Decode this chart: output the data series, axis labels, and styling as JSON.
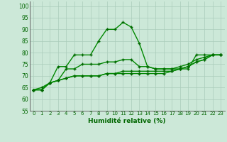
{
  "title": "",
  "xlabel": "Humidité relative (%)",
  "ylabel": "",
  "bg_color": "#cce8d8",
  "grid_color": "#aaccba",
  "line_color": "#008800",
  "marker_color": "#006600",
  "xlim": [
    -0.5,
    23.5
  ],
  "ylim": [
    55,
    102
  ],
  "yticks": [
    55,
    60,
    65,
    70,
    75,
    80,
    85,
    90,
    95,
    100
  ],
  "xticks": [
    0,
    1,
    2,
    3,
    4,
    5,
    6,
    7,
    8,
    9,
    10,
    11,
    12,
    13,
    14,
    15,
    16,
    17,
    18,
    19,
    20,
    21,
    22,
    23
  ],
  "lines": [
    [
      64,
      65,
      67,
      74,
      74,
      79,
      79,
      79,
      85,
      90,
      90,
      93,
      91,
      84,
      74,
      73,
      73,
      73,
      73,
      73,
      79,
      79,
      79,
      79
    ],
    [
      64,
      64,
      67,
      68,
      73,
      73,
      75,
      75,
      75,
      76,
      76,
      77,
      77,
      74,
      74,
      73,
      73,
      73,
      74,
      75,
      77,
      78,
      79,
      79
    ],
    [
      64,
      64,
      67,
      68,
      69,
      70,
      70,
      70,
      70,
      71,
      71,
      72,
      72,
      72,
      72,
      72,
      72,
      72,
      73,
      74,
      76,
      77,
      79,
      79
    ],
    [
      64,
      64,
      67,
      68,
      69,
      70,
      70,
      70,
      70,
      71,
      71,
      71,
      71,
      71,
      71,
      71,
      71,
      72,
      73,
      74,
      76,
      77,
      79,
      79
    ]
  ]
}
